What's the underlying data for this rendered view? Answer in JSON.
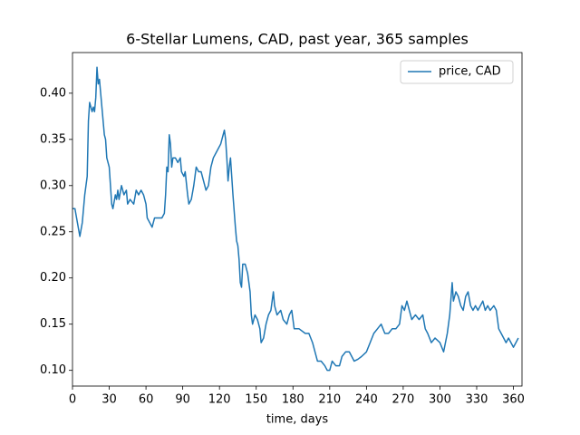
{
  "chart_data": {
    "type": "line",
    "title": "6-Stellar Lumens, CAD, past year, 365 samples",
    "xlabel": "time, days",
    "x": [
      0,
      2,
      4,
      6,
      8,
      10,
      12,
      13,
      14,
      16,
      17,
      18,
      19,
      20,
      21,
      22,
      23,
      25,
      26,
      27,
      28,
      30,
      31,
      32,
      33,
      35,
      36,
      37,
      38,
      40,
      42,
      44,
      45,
      47,
      50,
      52,
      54,
      56,
      58,
      60,
      61,
      63,
      65,
      67,
      70,
      73,
      75,
      76,
      77,
      78,
      79,
      80,
      81,
      82,
      84,
      86,
      88,
      89,
      91,
      92,
      94,
      95,
      97,
      99,
      100,
      101,
      103,
      105,
      107,
      109,
      111,
      113,
      115,
      117,
      119,
      121,
      122,
      124,
      125,
      126,
      127,
      128,
      129,
      130,
      131,
      133,
      134,
      135,
      136,
      137,
      138,
      139,
      141,
      143,
      145,
      146,
      147,
      149,
      151,
      153,
      154,
      156,
      158,
      160,
      162,
      164,
      165,
      167,
      170,
      172,
      175,
      177,
      179,
      181,
      185,
      190,
      193,
      196,
      198,
      200,
      203,
      206,
      208,
      210,
      212,
      215,
      218,
      220,
      223,
      226,
      228,
      230,
      233,
      236,
      240,
      243,
      246,
      249,
      252,
      255,
      258,
      261,
      264,
      267,
      269,
      271,
      273,
      275,
      277,
      280,
      283,
      286,
      288,
      290,
      293,
      296,
      300,
      303,
      306,
      308,
      310,
      311,
      313,
      315,
      317,
      319,
      321,
      323,
      325,
      327,
      329,
      331,
      333,
      335,
      337,
      339,
      341,
      344,
      346,
      348,
      350,
      352,
      354,
      356,
      358,
      360,
      362,
      364
    ],
    "series": [
      {
        "name": "price, CAD",
        "color": "#1f77b4",
        "values": [
          0.275,
          0.275,
          0.26,
          0.245,
          0.26,
          0.29,
          0.31,
          0.37,
          0.39,
          0.38,
          0.385,
          0.38,
          0.395,
          0.428,
          0.41,
          0.415,
          0.4,
          0.37,
          0.355,
          0.35,
          0.33,
          0.32,
          0.3,
          0.28,
          0.275,
          0.29,
          0.285,
          0.295,
          0.285,
          0.3,
          0.29,
          0.295,
          0.28,
          0.285,
          0.28,
          0.295,
          0.29,
          0.295,
          0.29,
          0.28,
          0.265,
          0.26,
          0.255,
          0.265,
          0.265,
          0.265,
          0.27,
          0.29,
          0.32,
          0.315,
          0.355,
          0.345,
          0.32,
          0.33,
          0.33,
          0.325,
          0.33,
          0.315,
          0.31,
          0.315,
          0.29,
          0.28,
          0.285,
          0.3,
          0.31,
          0.32,
          0.315,
          0.315,
          0.305,
          0.295,
          0.3,
          0.32,
          0.33,
          0.335,
          0.34,
          0.345,
          0.35,
          0.36,
          0.35,
          0.33,
          0.305,
          0.32,
          0.33,
          0.31,
          0.29,
          0.255,
          0.24,
          0.235,
          0.22,
          0.195,
          0.19,
          0.215,
          0.215,
          0.205,
          0.185,
          0.16,
          0.15,
          0.16,
          0.155,
          0.145,
          0.13,
          0.135,
          0.15,
          0.16,
          0.165,
          0.185,
          0.17,
          0.16,
          0.165,
          0.155,
          0.15,
          0.16,
          0.165,
          0.145,
          0.145,
          0.14,
          0.14,
          0.13,
          0.12,
          0.11,
          0.11,
          0.105,
          0.1,
          0.1,
          0.11,
          0.105,
          0.105,
          0.115,
          0.12,
          0.12,
          0.115,
          0.11,
          0.112,
          0.115,
          0.12,
          0.13,
          0.14,
          0.145,
          0.15,
          0.14,
          0.14,
          0.145,
          0.145,
          0.15,
          0.17,
          0.165,
          0.175,
          0.165,
          0.155,
          0.16,
          0.155,
          0.16,
          0.145,
          0.14,
          0.13,
          0.135,
          0.13,
          0.12,
          0.14,
          0.16,
          0.195,
          0.175,
          0.185,
          0.18,
          0.17,
          0.165,
          0.18,
          0.185,
          0.17,
          0.165,
          0.17,
          0.165,
          0.17,
          0.175,
          0.165,
          0.17,
          0.165,
          0.17,
          0.165,
          0.145,
          0.14,
          0.135,
          0.13,
          0.135,
          0.13,
          0.125,
          0.13,
          0.135
        ]
      }
    ],
    "xlim": [
      0,
      367
    ],
    "ylim": [
      0.083,
      0.444
    ],
    "xticks": [
      0,
      30,
      60,
      90,
      120,
      150,
      180,
      210,
      240,
      270,
      300,
      330,
      360
    ],
    "yticks": [
      {
        "value": 0.1,
        "label": "0.10"
      },
      0.15,
      {
        "value": 0.2,
        "label": "0.20"
      },
      0.25,
      {
        "value": 0.3,
        "label": "0.30"
      },
      0.35,
      {
        "value": 0.4,
        "label": "0.40"
      }
    ],
    "legend": "upper right",
    "grid": false
  }
}
